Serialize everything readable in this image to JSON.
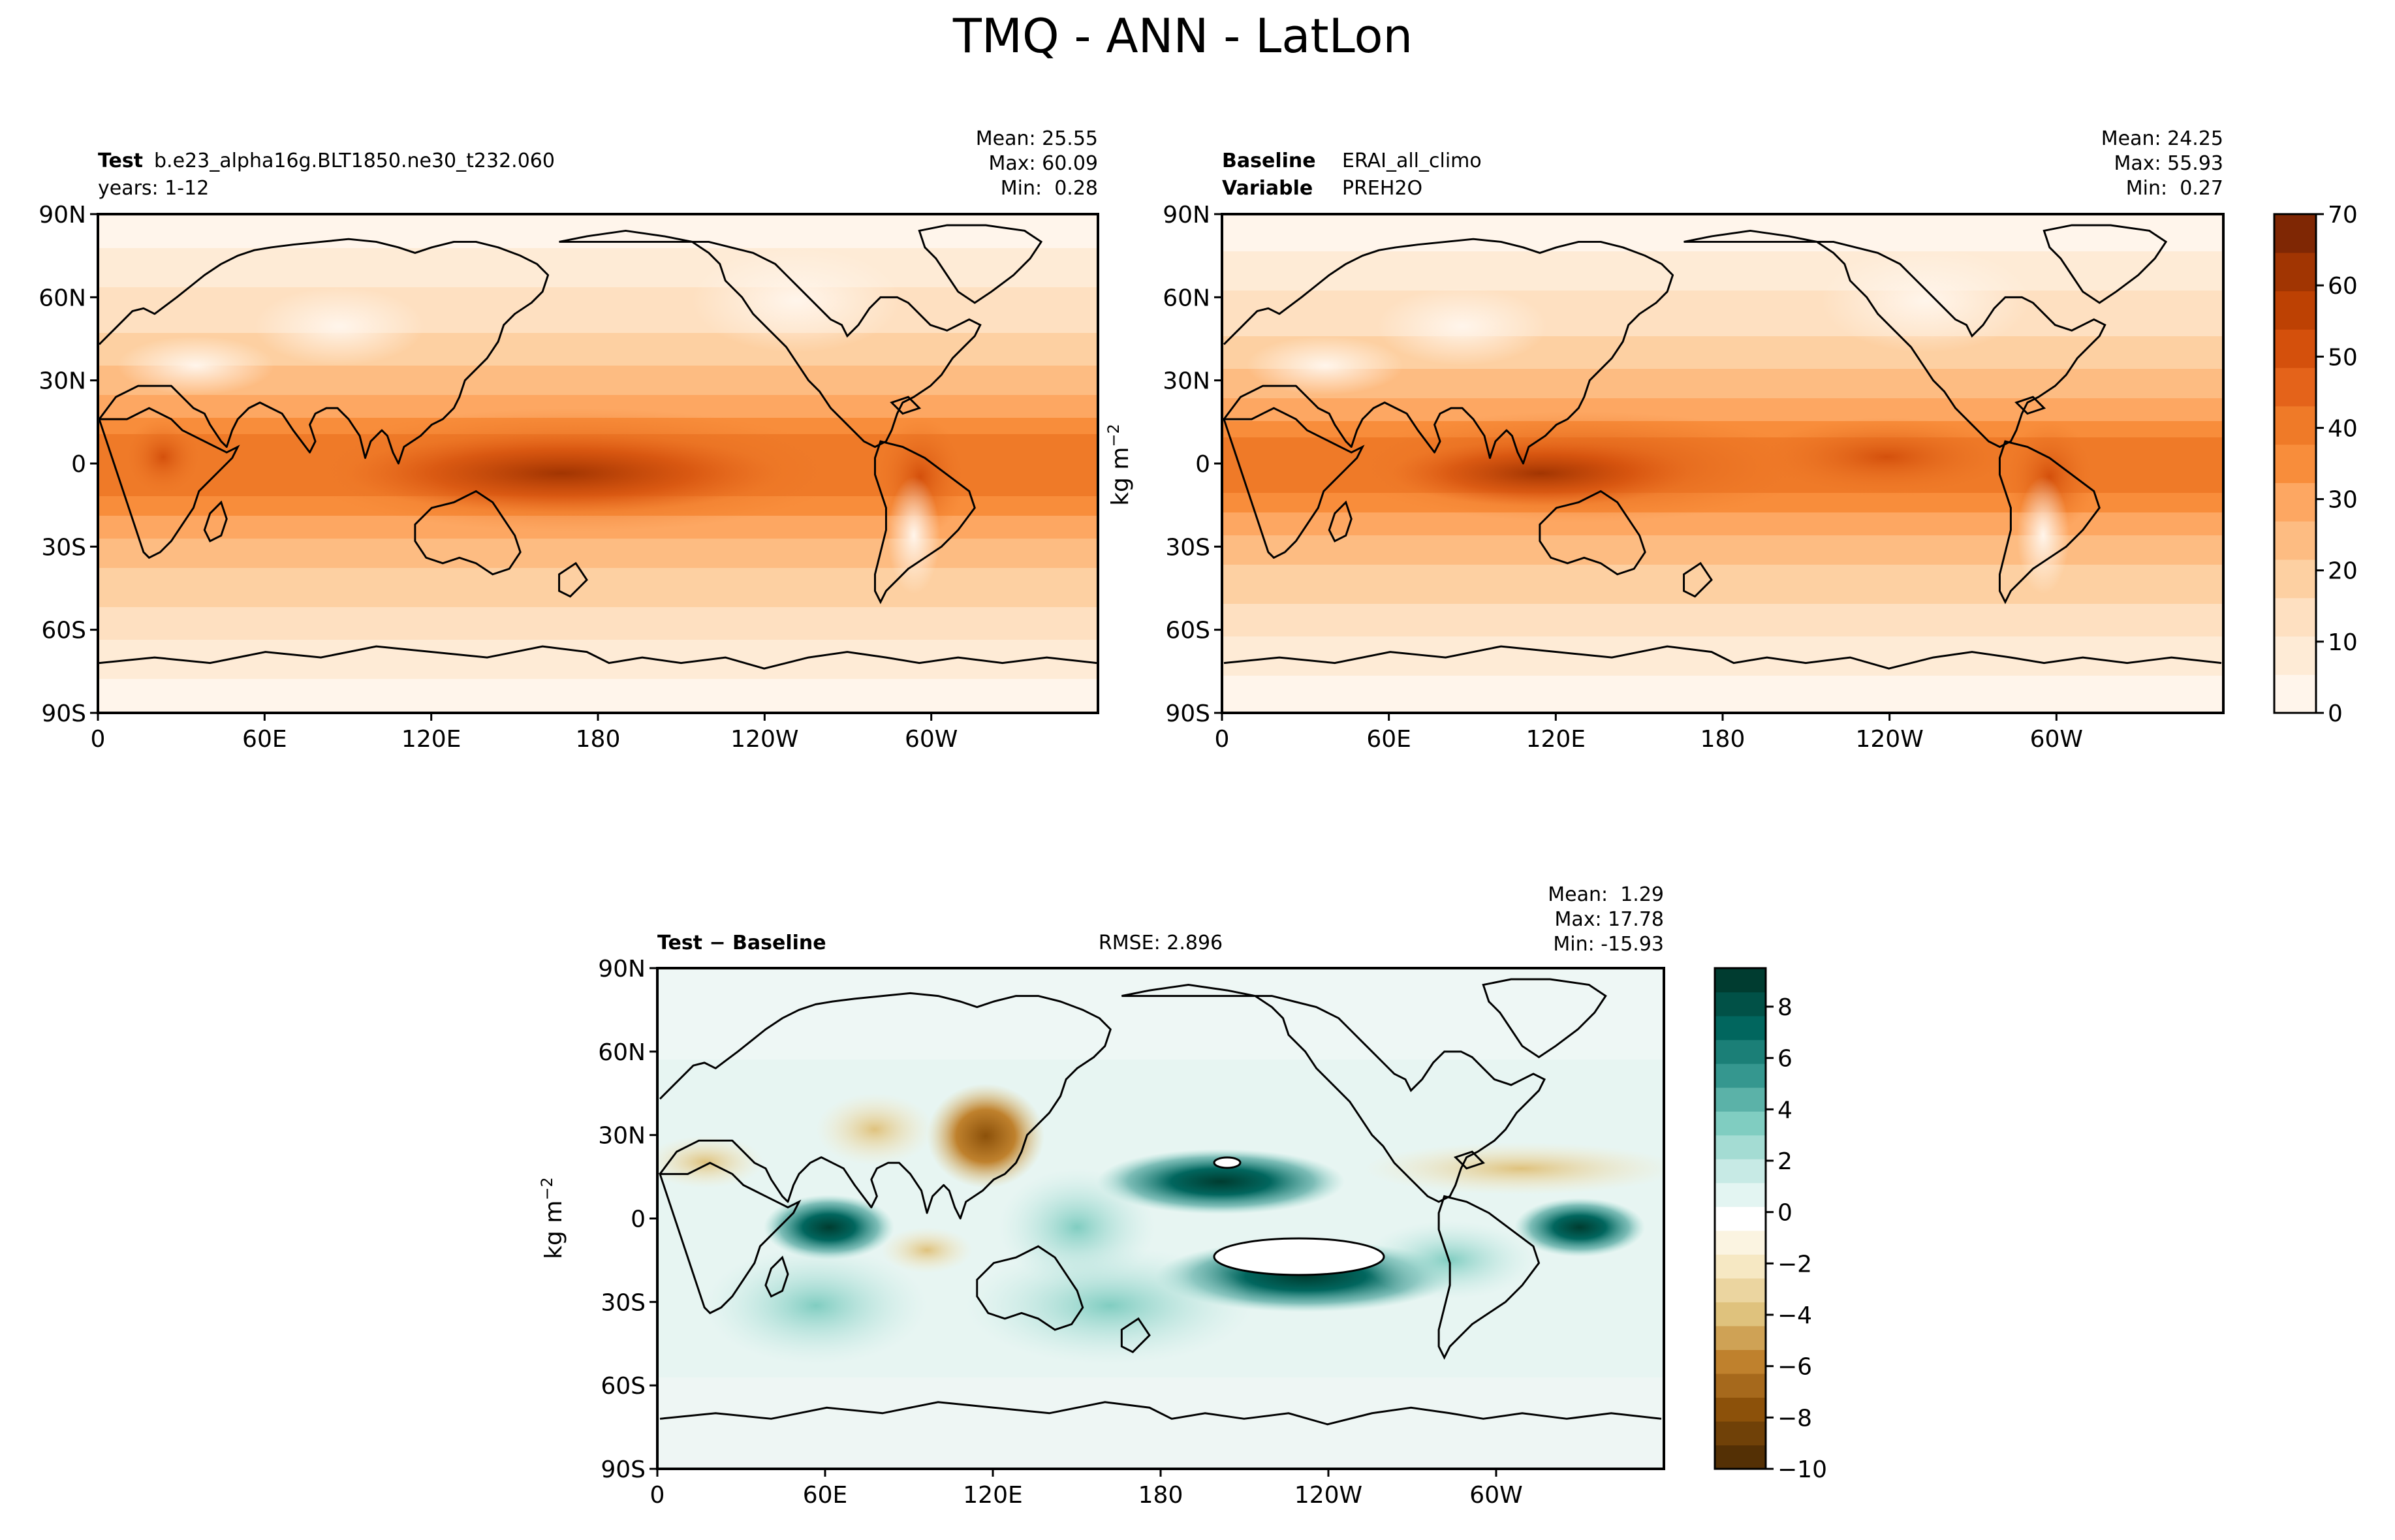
{
  "suptitle": "TMQ - ANN - LatLon",
  "ylabel_sfx": "−2",
  "unit_prefix": "kg m",
  "lat_ticks": [
    "90N",
    "60N",
    "30N",
    "0",
    "30S",
    "60S",
    "90S"
  ],
  "lon_ticks": [
    "0",
    "60E",
    "120E",
    "180",
    "120W",
    "60W"
  ],
  "colors": {
    "sequential": [
      "#fff5eb",
      "#feebd6",
      "#fee0c1",
      "#fdd0a2",
      "#fdbc82",
      "#fda762",
      "#f88d3b",
      "#ef7a28",
      "#e4631a",
      "#d4500c",
      "#bd4103",
      "#a13502",
      "#7f2704"
    ],
    "diverging": [
      "#543005",
      "#8c510a",
      "#bf812d",
      "#dfc27d",
      "#f6e8c3",
      "#ffffff",
      "#c7eae5",
      "#80cdc1",
      "#35978f",
      "#01665e",
      "#003c30"
    ]
  },
  "chart_data": [
    {
      "type": "heatmap",
      "panel": "test",
      "label_bold": "Test",
      "label_value": "b.e23_alpha16g.BLT1850.ne30_t232.060",
      "label_line2": "years: 1-12",
      "stats": [
        "Mean: 25.55",
        "Max: 60.09",
        "Min:  0.28"
      ],
      "stats_values": {
        "mean": 25.55,
        "max": 60.09,
        "min": 0.28
      },
      "xlim": [
        0,
        360
      ],
      "ylim": [
        -90,
        90
      ]
    },
    {
      "type": "heatmap",
      "panel": "baseline",
      "label_bold": "Baseline",
      "label_value": "ERAI_all_climo",
      "label_bold2": "Variable",
      "label_value2": "PREH2O",
      "stats": [
        "Mean: 24.25",
        "Max: 55.93",
        "Min:  0.27"
      ],
      "stats_values": {
        "mean": 24.25,
        "max": 55.93,
        "min": 0.27
      },
      "xlim": [
        0,
        360
      ],
      "ylim": [
        -90,
        90
      ],
      "colorbar": {
        "ticks": [
          "0",
          "10",
          "20",
          "30",
          "40",
          "50",
          "60",
          "70"
        ],
        "range": [
          0,
          70
        ]
      }
    },
    {
      "type": "heatmap",
      "panel": "difference",
      "label_bold": "Test − Baseline",
      "rmse": "RMSE: 2.896",
      "stats": [
        "Mean:  1.29",
        "Max: 17.78",
        "Min: -15.93"
      ],
      "stats_values": {
        "mean": 1.29,
        "max": 17.78,
        "min": -15.93,
        "rmse": 2.896
      },
      "xlim": [
        0,
        360
      ],
      "ylim": [
        -90,
        90
      ],
      "colorbar": {
        "ticks": [
          "8",
          "6",
          "4",
          "2",
          "0",
          "−2",
          "−4",
          "−6",
          "−8",
          "−10"
        ],
        "range": [
          -10,
          9.5
        ]
      }
    }
  ]
}
